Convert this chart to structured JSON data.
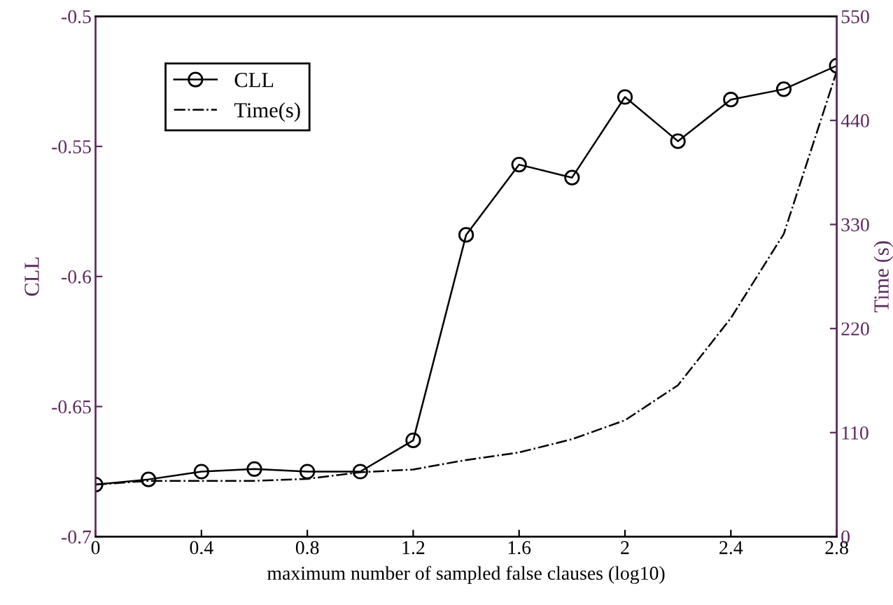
{
  "chart_data": {
    "type": "line",
    "xlabel": "maximum number of sampled false clauses (log10)",
    "ylabel": "CLL",
    "y2label": "Time (s)",
    "x": [
      0,
      0.2,
      0.4,
      0.6,
      0.8,
      1.0,
      1.2,
      1.4,
      1.6,
      1.8,
      2.0,
      2.2,
      2.4,
      2.6,
      2.8
    ],
    "series": [
      {
        "name": "CLL",
        "color": "#000000",
        "marker": "circle",
        "line_style": "solid",
        "values": [
          -0.68,
          -0.678,
          -0.675,
          -0.674,
          -0.675,
          -0.675,
          -0.663,
          -0.584,
          -0.557,
          -0.562,
          -0.531,
          -0.548,
          -0.532,
          -0.528,
          -0.519
        ]
      },
      {
        "name": "Time(s)",
        "color": "#000000",
        "marker": "none",
        "line_style": "dashdot",
        "axis": "y2",
        "values": [
          55,
          59,
          59,
          59,
          61,
          68,
          71,
          81,
          89,
          103,
          123,
          160,
          231,
          320,
          492
        ]
      }
    ],
    "xlim": [
      0,
      2.8
    ],
    "xticks": [
      0,
      0.4,
      0.8,
      1.2,
      1.6,
      2,
      2.4,
      2.8
    ],
    "ylim": [
      -0.7,
      -0.5
    ],
    "yticks": [
      -0.7,
      -0.65,
      -0.6,
      -0.55,
      -0.5
    ],
    "y2lim": [
      0,
      550
    ],
    "y2ticks": [
      0,
      110,
      220,
      330,
      440,
      550
    ],
    "grid": false,
    "legend": "top left"
  }
}
